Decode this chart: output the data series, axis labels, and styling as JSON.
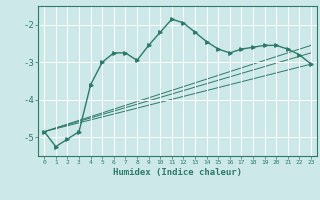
{
  "xlabel": "Humidex (Indice chaleur)",
  "bg_color": "#cce8e8",
  "grid_color": "#ffffff",
  "line_color": "#2d7a6a",
  "xlim": [
    -0.5,
    23.5
  ],
  "ylim": [
    -5.5,
    -1.5
  ],
  "yticks": [
    -5,
    -4,
    -3,
    -2
  ],
  "ytick_labels": [
    "-5",
    "-4",
    "-3",
    "-2"
  ],
  "xticks": [
    0,
    1,
    2,
    3,
    4,
    5,
    6,
    7,
    8,
    9,
    10,
    11,
    12,
    13,
    14,
    15,
    16,
    17,
    18,
    19,
    20,
    21,
    22,
    23
  ],
  "xtick_labels": [
    "0",
    "1",
    "2",
    "3",
    "4",
    "5",
    "6",
    "7",
    "8",
    "9",
    "10",
    "11",
    "12",
    "13",
    "14",
    "15",
    "16",
    "17",
    "18",
    "19",
    "20",
    "21",
    "22",
    "23"
  ],
  "line1_x": [
    0,
    1,
    2,
    3,
    4,
    5,
    6,
    7,
    8,
    9,
    10,
    11,
    12,
    13,
    14,
    15,
    16,
    17,
    18,
    19,
    20,
    21,
    22,
    23
  ],
  "line1_y": [
    -4.85,
    -5.25,
    -5.05,
    -4.85,
    -3.6,
    -3.0,
    -2.75,
    -2.75,
    -2.95,
    -2.55,
    -2.2,
    -1.85,
    -1.95,
    -2.2,
    -2.45,
    -2.65,
    -2.75,
    -2.65,
    -2.6,
    -2.55,
    -2.55,
    -2.65,
    -2.8,
    -3.05
  ],
  "line2_x": [
    0,
    23
  ],
  "line2_y": [
    -4.85,
    -3.05
  ],
  "line3_x": [
    0,
    23
  ],
  "line3_y": [
    -4.85,
    -3.05
  ],
  "line4_x": [
    0,
    23
  ],
  "line4_y": [
    -4.85,
    -3.05
  ],
  "fan_lines": [
    {
      "x": [
        0,
        23
      ],
      "y": [
        -4.85,
        -3.05
      ]
    },
    {
      "x": [
        0,
        23
      ],
      "y": [
        -4.85,
        -2.75
      ]
    },
    {
      "x": [
        0,
        23
      ],
      "y": [
        -4.85,
        -2.55
      ]
    }
  ]
}
